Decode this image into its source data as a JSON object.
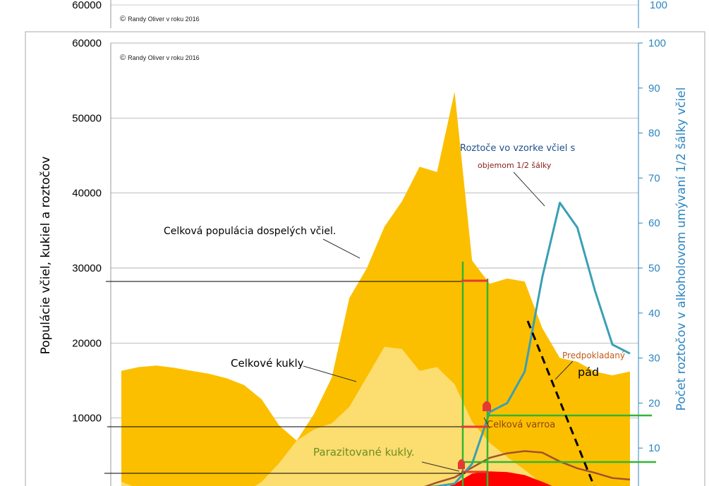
{
  "copyright": "Randy Oliver v roku 2016",
  "copyright_symbol": "©",
  "chart_data": {
    "type": "area",
    "y_left_label": "Populácie včiel, kukiel a roztočov",
    "y_right_label": "Počet roztočov v alkoholovom umývaní 1/2 šálky včiel",
    "y_left_ticks": [
      "60000",
      "50000",
      "40000",
      "30000",
      "20000",
      "10000"
    ],
    "y_right_ticks": [
      "100",
      "90",
      "80",
      "70",
      "60",
      "50",
      "40",
      "30",
      "20",
      "10"
    ],
    "y_left_range": [
      0,
      60000
    ],
    "y_right_range": [
      0,
      100
    ],
    "x_points": 30,
    "series": [
      {
        "name": "Celková populácia dospelých včiel",
        "axis": "left",
        "color": "#fbbf00",
        "values": [
          16300,
          16800,
          17000,
          16700,
          16300,
          15900,
          15300,
          14400,
          12500,
          9000,
          7000,
          10600,
          15400,
          26000,
          30000,
          35500,
          38900,
          43500,
          42800,
          53500,
          31000,
          27900,
          28600,
          28200,
          22000,
          18000,
          17500,
          16200,
          15700,
          16200
        ]
      },
      {
        "name": "Celkové kukly",
        "axis": "left",
        "color": "#fcdd6f",
        "values": [
          1500,
          600,
          0,
          0,
          0,
          0,
          0,
          0,
          1500,
          4000,
          7000,
          8500,
          9300,
          11500,
          15500,
          19500,
          19200,
          16300,
          16800,
          14500,
          9500,
          6700,
          4800,
          3100,
          1200,
          0,
          0,
          0,
          0,
          0
        ]
      },
      {
        "name": "Parazitované kukly",
        "axis": "left",
        "color": "#ff0000",
        "values": [
          0,
          0,
          0,
          0,
          0,
          0,
          0,
          0,
          0,
          0,
          0,
          0,
          0,
          0,
          0,
          0,
          0,
          0,
          300,
          1200,
          2600,
          2900,
          2800,
          2400,
          1500,
          500,
          0,
          0,
          0,
          0
        ]
      },
      {
        "name": "Celková varroa",
        "axis": "left",
        "color": "#a0522d",
        "values": [
          0,
          0,
          0,
          0,
          0,
          0,
          0,
          0,
          0,
          0,
          0,
          0,
          0,
          0,
          0,
          0,
          200,
          600,
          1400,
          2100,
          3400,
          4700,
          5300,
          5600,
          5400,
          4200,
          3300,
          2700,
          2000,
          1800
        ]
      },
      {
        "name": "Roztoče vo vzorke včiel s objemom 1/2 šálky",
        "axis": "right",
        "color": "#3a9fb5",
        "values": [
          0,
          0,
          0,
          0,
          0,
          0,
          0,
          0,
          0,
          0.6,
          1.2,
          0.3,
          0,
          0,
          0,
          0,
          0.5,
          1.1,
          1.5,
          2.1,
          6.5,
          18,
          20,
          27,
          48,
          64.5,
          59,
          45,
          33,
          31
        ]
      }
    ],
    "annotations": {
      "adults": "Celková populácia dospelých včiel.",
      "pupae": "Celkové kukly",
      "parasitized": "Parazitované kukly.",
      "varroa": "Celková varroa",
      "mites_line1": "Roztoče vo vzorke včiel s",
      "mites_line2": "objemom 1/2 šálky",
      "decline_line1": "Predpokladaný",
      "decline_line2": "pád"
    },
    "grid": "horizontal"
  },
  "colors": {
    "adults": "#fbbf00",
    "pupae": "#fcdd6f",
    "parasitized": "#ff0000",
    "varroa": "#a0522d",
    "mites": "#3a9fb5",
    "guides": "#33b533",
    "right_axis": "#2e86c1"
  }
}
